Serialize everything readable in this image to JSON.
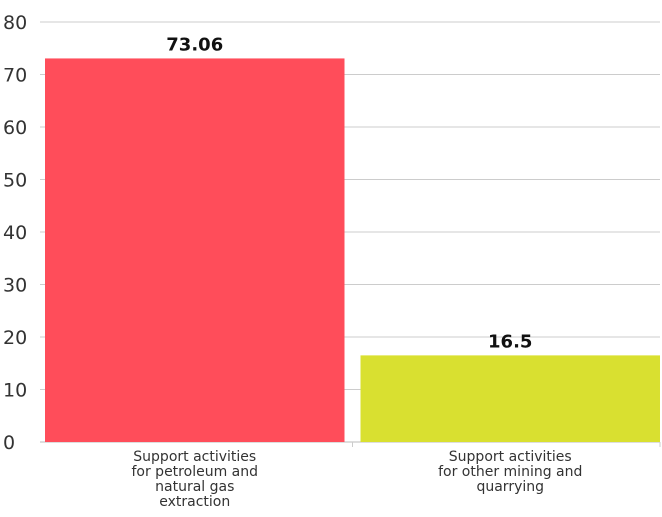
{
  "chart_data": {
    "type": "bar",
    "title": "",
    "xlabel": "",
    "ylabel": "",
    "categories": [
      [
        "Support activities",
        "for petroleum and",
        "natural gas",
        "extraction"
      ],
      [
        "Support activities",
        "for other mining and",
        "quarrying"
      ]
    ],
    "values": [
      73.06,
      16.5
    ],
    "value_labels": [
      "73.06",
      "16.5"
    ],
    "colors": [
      "#ff4d5a",
      "#d9e030"
    ],
    "ylim": [
      0,
      80
    ],
    "yticks": [
      0,
      10,
      20,
      30,
      40,
      50,
      60,
      70,
      80
    ],
    "grid": true,
    "legend": "none"
  }
}
